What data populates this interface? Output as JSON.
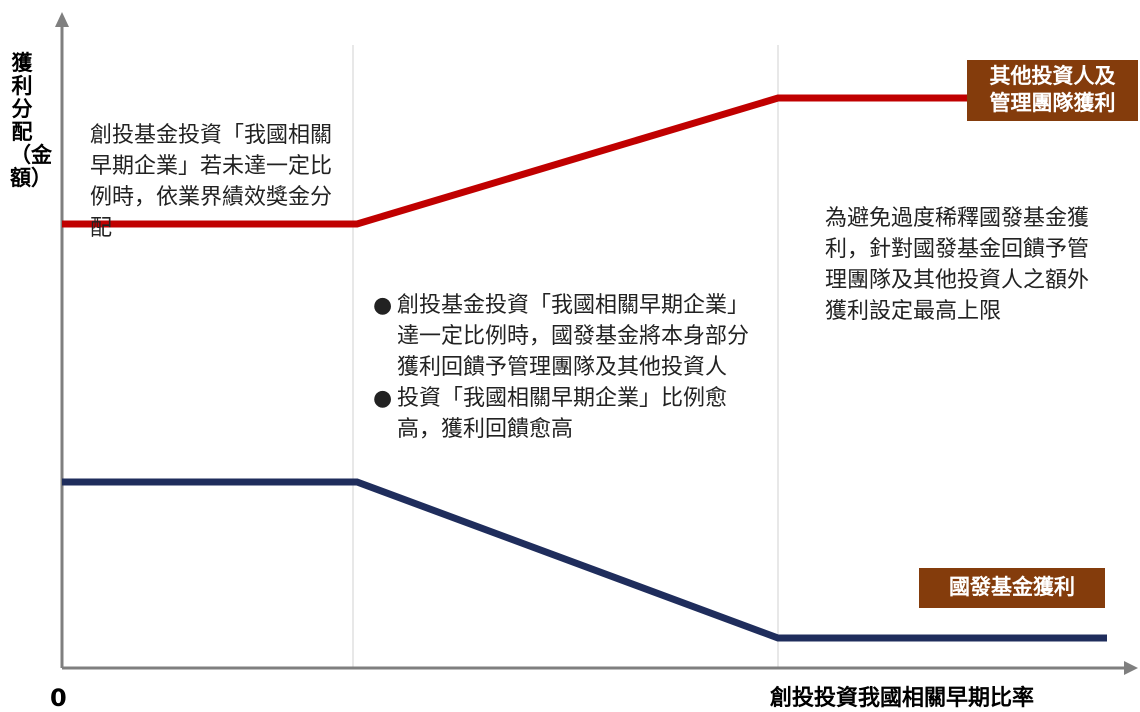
{
  "y_axis": {
    "label_chars": [
      "獲",
      "利",
      "分",
      "配",
      "（金",
      "額）"
    ]
  },
  "x_axis": {
    "label": "創投投資我國相關早期比率",
    "origin_label": "0"
  },
  "notes": {
    "left": "創投基金投資「我國相關早期企業」若未達一定比例時，依業界績效獎金分配",
    "right": "為避免過度稀釋國發基金獲利，針對國發基金回饋予管理團隊及其他投資人之額外獲利設定最高上限"
  },
  "bullets": [
    {
      "marker": "●",
      "text": "創投基金投資「我國相關早期企業」達一定比例時，國發基金將本身部分獲利回饋予管理團隊及其他投資人"
    },
    {
      "marker": "●",
      "text": "投資「我國相關早期企業」比例愈高，獲利回饋愈高"
    }
  ],
  "badges": {
    "others": {
      "line1": "其他投資人及",
      "line2": "管理團隊獲利"
    },
    "ndf": "國發基金獲利"
  },
  "lines": {
    "others_profit": {
      "color": "#c00000",
      "levels": [
        0.74,
        0.74,
        0.95,
        0.95
      ]
    },
    "ndf_profit": {
      "color": "#1f2d5c",
      "levels": [
        0.31,
        0.31,
        0.05,
        0.05
      ]
    }
  },
  "colors": {
    "axis": "#7f7f7f",
    "divider": "#d0d0d0",
    "badge": "#843c0c"
  }
}
